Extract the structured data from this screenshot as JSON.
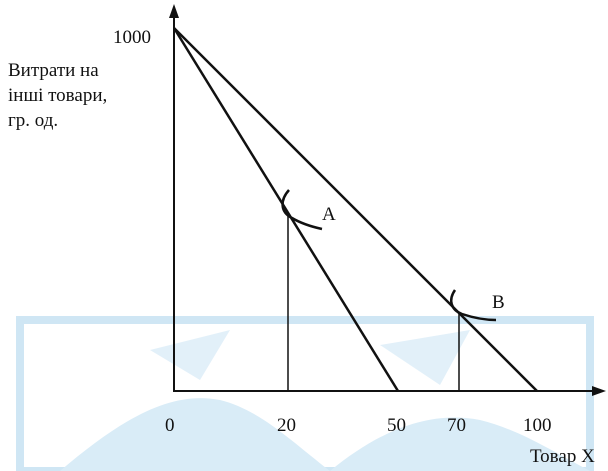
{
  "diagram": {
    "y_axis": {
      "top_value": "1000",
      "label_lines": [
        "Витрати на",
        "інші товари,",
        "гр. од."
      ]
    },
    "x_axis": {
      "tick_labels": [
        "0",
        "20",
        "50",
        "70",
        "100"
      ],
      "label": "Товар X"
    },
    "budget_lines": [
      {
        "y_intercept": 1000,
        "x_intercept": 50
      },
      {
        "y_intercept": 1000,
        "x_intercept": 100
      }
    ],
    "tangency_points": [
      {
        "name": "A",
        "x": 20
      },
      {
        "name": "B",
        "x": 70
      }
    ],
    "colors": {
      "line": "#111111",
      "watermark": "#cfe6f4"
    }
  }
}
